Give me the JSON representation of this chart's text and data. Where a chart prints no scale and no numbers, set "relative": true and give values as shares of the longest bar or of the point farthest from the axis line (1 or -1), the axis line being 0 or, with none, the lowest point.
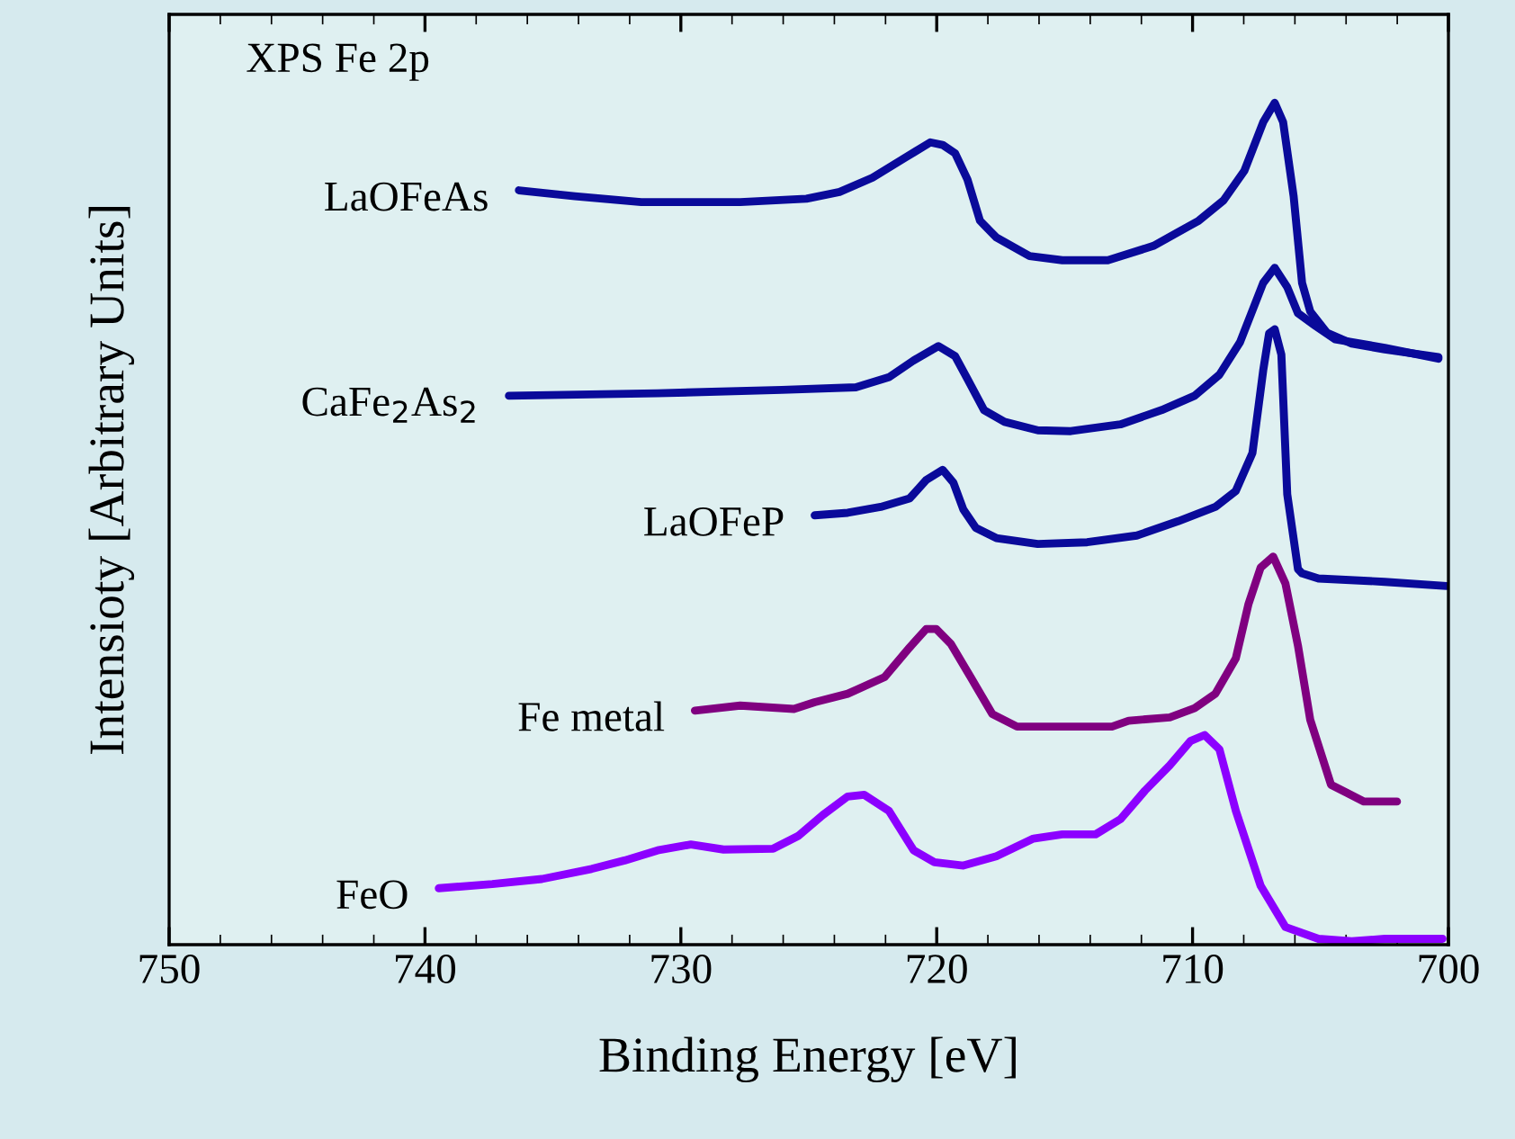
{
  "chart_data": {
    "type": "line",
    "relative": true,
    "xlabel": "Binding Energy [eV]",
    "ylabel": "Intensioty [Arbitrary Units]",
    "annotations": [
      "XPS Fe 2p"
    ],
    "xlim": [
      750,
      700
    ],
    "xticks": [
      750,
      740,
      730,
      720,
      710,
      700
    ],
    "grid": false,
    "legend": false,
    "marker": "none",
    "line_style": "solid",
    "series": [
      {
        "name": "LaOFeAs",
        "color": "#0a0a9a",
        "x": [
          736.33,
          734.14,
          731.55,
          727.68,
          725.09,
          723.8,
          722.51,
          721.22,
          720.25,
          719.77,
          719.28,
          718.8,
          718.31,
          717.67,
          716.37,
          715.09,
          713.31,
          711.53,
          709.76,
          708.79,
          707.98,
          707.24,
          706.79,
          706.46,
          706.05,
          705.72,
          705.4,
          704.75,
          703.78,
          702.49,
          700.39
        ],
        "values": [
          0.896,
          0.889,
          0.882,
          0.882,
          0.886,
          0.894,
          0.911,
          0.935,
          0.953,
          0.95,
          0.94,
          0.909,
          0.86,
          0.84,
          0.818,
          0.813,
          0.813,
          0.83,
          0.86,
          0.884,
          0.919,
          0.977,
          1,
          0.977,
          0.889,
          0.786,
          0.752,
          0.727,
          0.714,
          0.707,
          0.698
        ]
      },
      {
        "name": "CaFe$_{2}$As$_{2}$",
        "color": "#0a0a9a",
        "x": [
          736.72,
          730.91,
          726.06,
          723.16,
          721.87,
          720.9,
          719.93,
          719.28,
          718.8,
          718.15,
          717.35,
          716.05,
          714.76,
          712.82,
          711.21,
          709.92,
          708.95,
          708.14,
          707.24,
          706.79,
          706.3,
          705.88,
          705.24,
          704.43,
          702.49,
          700.39
        ],
        "values": [
          0.652,
          0.655,
          0.659,
          0.662,
          0.674,
          0.694,
          0.711,
          0.699,
          0.672,
          0.635,
          0.621,
          0.611,
          0.61,
          0.618,
          0.635,
          0.652,
          0.677,
          0.716,
          0.786,
          0.804,
          0.781,
          0.75,
          0.736,
          0.719,
          0.709,
          0.696
        ]
      },
      {
        "name": "LaOFeP",
        "color": "#0a0a9a",
        "x": [
          724.77,
          723.48,
          722.19,
          721.06,
          720.41,
          719.77,
          719.35,
          718.96,
          718.47,
          717.67,
          716.05,
          714.12,
          712.18,
          710.56,
          709.11,
          708.31,
          707.66,
          707.24,
          707.01,
          706.79,
          706.53,
          706.3,
          705.88,
          705.72,
          705.08,
          702.49,
          700.07
        ],
        "values": [
          0.51,
          0.513,
          0.52,
          0.53,
          0.552,
          0.564,
          0.549,
          0.517,
          0.495,
          0.483,
          0.476,
          0.478,
          0.486,
          0.503,
          0.52,
          0.539,
          0.584,
          0.682,
          0.726,
          0.731,
          0.701,
          0.535,
          0.446,
          0.441,
          0.435,
          0.431,
          0.426
        ]
      },
      {
        "name": "Fe metal",
        "color": "#800080",
        "x": [
          729.45,
          727.68,
          725.58,
          724.77,
          723.48,
          722.03,
          721.06,
          720.41,
          720.02,
          719.44,
          718.64,
          717.83,
          716.86,
          714.76,
          713.15,
          712.5,
          710.89,
          709.92,
          709.11,
          708.31,
          707.82,
          707.34,
          706.85,
          706.37,
          705.88,
          705.4,
          704.59,
          703.95,
          703.3,
          702.01
        ],
        "values": [
          0.278,
          0.284,
          0.28,
          0.288,
          0.298,
          0.318,
          0.353,
          0.375,
          0.375,
          0.357,
          0.316,
          0.274,
          0.259,
          0.259,
          0.259,
          0.266,
          0.27,
          0.281,
          0.298,
          0.34,
          0.404,
          0.448,
          0.461,
          0.429,
          0.355,
          0.267,
          0.19,
          0.18,
          0.17,
          0.17
        ]
      },
      {
        "name": "FeO",
        "color": "#8c00ff",
        "x": [
          739.46,
          737.37,
          735.43,
          733.49,
          732.2,
          730.91,
          729.61,
          728.33,
          726.39,
          725.42,
          724.45,
          723.48,
          722.83,
          721.87,
          720.9,
          720.09,
          718.96,
          717.67,
          716.22,
          715.09,
          713.79,
          712.82,
          711.86,
          710.89,
          710.08,
          709.53,
          708.95,
          708.31,
          707.34,
          706.37,
          705.08,
          703.78,
          702.49,
          700.23
        ],
        "values": [
          0.067,
          0.072,
          0.078,
          0.09,
          0.1,
          0.112,
          0.119,
          0.113,
          0.114,
          0.129,
          0.154,
          0.176,
          0.178,
          0.159,
          0.112,
          0.098,
          0.094,
          0.105,
          0.126,
          0.131,
          0.131,
          0.149,
          0.183,
          0.213,
          0.242,
          0.249,
          0.232,
          0.159,
          0.07,
          0.021,
          0.007,
          0.004,
          0.007,
          0.007
        ]
      }
    ]
  }
}
